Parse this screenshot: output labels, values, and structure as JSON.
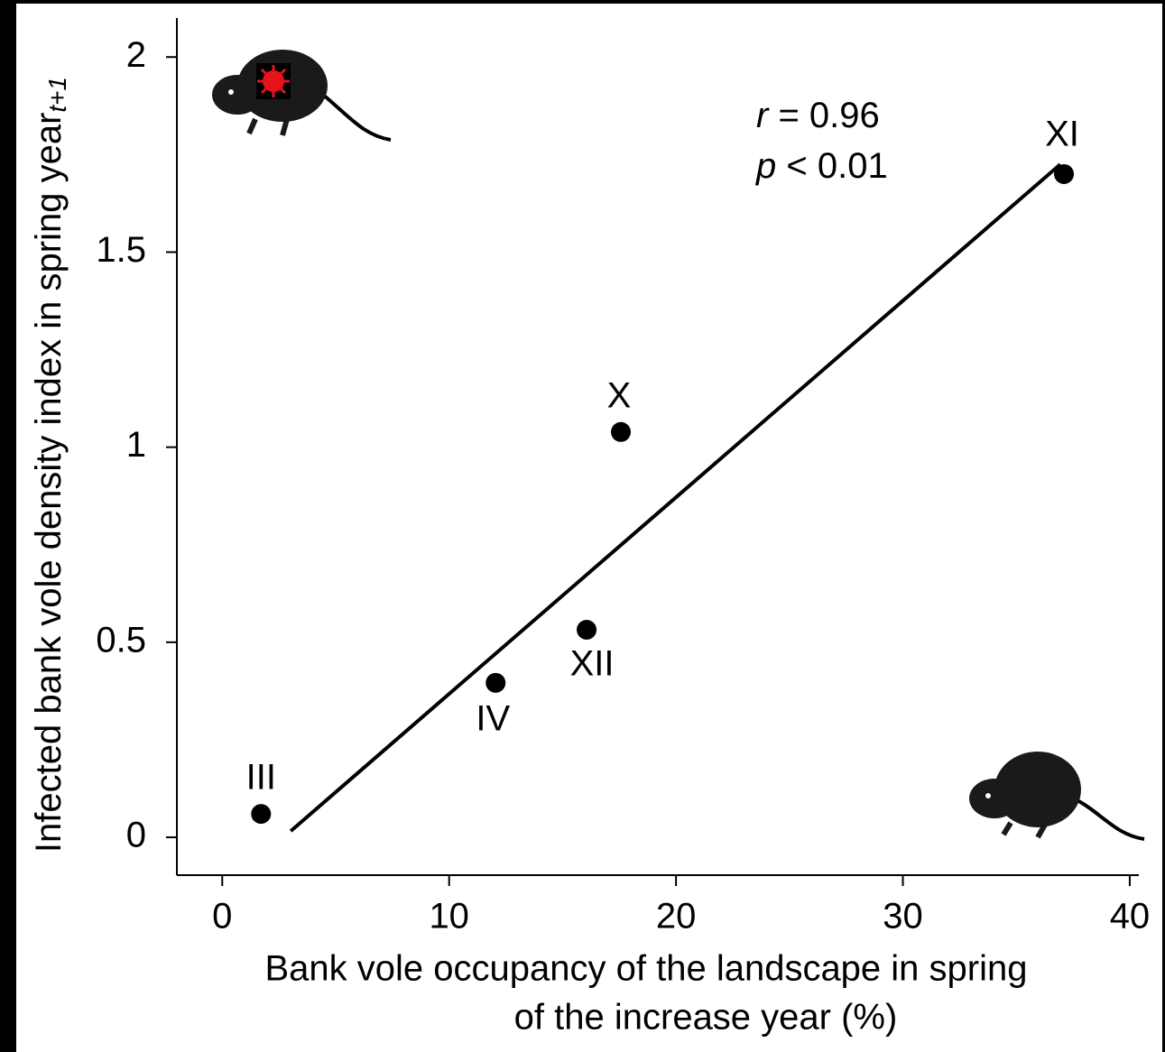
{
  "chart_data": {
    "type": "scatter",
    "x_label": [
      "Bank vole occupancy of the landscape in spring",
      "of the increase year (%)"
    ],
    "y_label": "Infected bank vole density index in spring year",
    "y_label_subscript": "t+1",
    "annotations": [
      {
        "symbol": "r",
        "text": " = 0.96"
      },
      {
        "symbol": "p",
        "text": " < 0.01"
      }
    ],
    "point_labels": [
      "III",
      "IV",
      "XII",
      "X",
      "XI"
    ],
    "x": [
      1.71,
      12.05,
      16.06,
      17.57,
      37.1
    ],
    "values": [
      0.06,
      0.396,
      0.532,
      1.039,
      1.7
    ],
    "color": "#000000",
    "trend_line": {
      "x": [
        3.02,
        36.94
      ],
      "values": [
        0.016,
        1.725
      ],
      "color": "#000000"
    },
    "xlim": [
      -2,
      40.4
    ],
    "ylim": [
      -0.097,
      2.1
    ],
    "xticks": [
      0,
      10,
      20,
      30,
      40
    ],
    "yticks": [
      0,
      0.5,
      1,
      1.5,
      2
    ]
  }
}
